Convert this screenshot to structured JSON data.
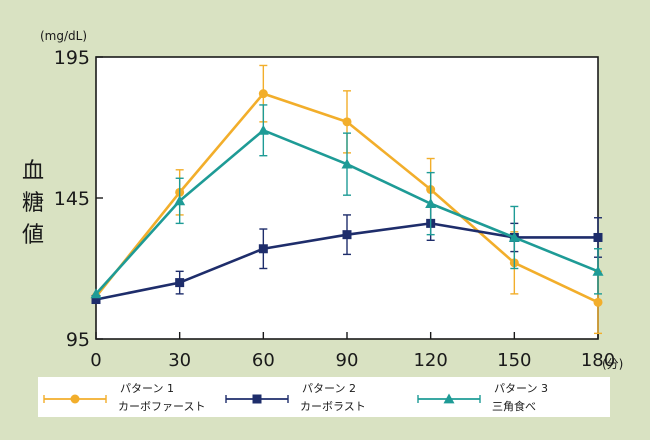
{
  "chart_data": {
    "type": "line",
    "x": [
      0,
      30,
      60,
      90,
      120,
      150,
      180
    ],
    "xlim": [
      0,
      180
    ],
    "ylim": [
      95,
      195
    ],
    "x_ticks": [
      "0",
      "30",
      "60",
      "90",
      "120",
      "150",
      "180"
    ],
    "y_ticks": [
      "95",
      "145",
      "195"
    ],
    "y_unit": "(mg/dL)",
    "x_unit": "(分)",
    "ylabel_chars": [
      "血",
      "糖",
      "値"
    ],
    "grid": false,
    "legend_position": "bottom",
    "series": [
      {
        "name_line1": "パターン 1",
        "name_line2": "カーボファースト",
        "marker": "circle",
        "color": "#f2ae2b",
        "values": [
          110,
          147,
          182,
          172,
          148,
          122,
          108
        ],
        "errors": [
          0,
          8,
          10,
          11,
          11,
          11,
          11
        ]
      },
      {
        "name_line1": "パターン 2",
        "name_line2": "カーボラスト",
        "marker": "square",
        "color": "#1e2d6b",
        "values": [
          109,
          115,
          127,
          132,
          136,
          131,
          131
        ],
        "errors": [
          0,
          4,
          7,
          7,
          6,
          5,
          7
        ]
      },
      {
        "name_line1": "パターン 3",
        "name_line2": "三角食べ",
        "marker": "triangle",
        "color": "#1e9b96",
        "values": [
          111,
          144,
          169,
          157,
          143,
          131,
          119
        ],
        "errors": [
          0,
          8,
          9,
          11,
          11,
          11,
          8
        ]
      }
    ]
  }
}
